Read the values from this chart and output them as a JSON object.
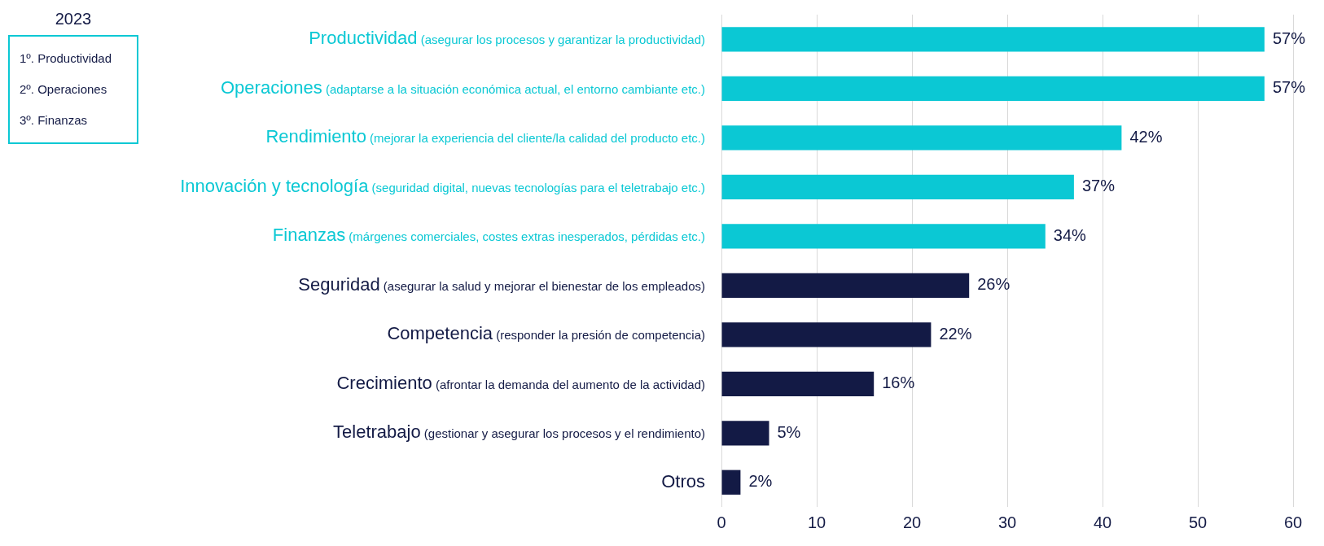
{
  "chart_data": {
    "type": "bar",
    "orientation": "horizontal",
    "categories": [
      "Productividad (asegurar los procesos y garantizar la productividad)",
      "Operaciones (adaptarse a la situación económica actual, el entorno cambiante etc.)",
      "Rendimiento (mejorar la experiencia del cliente/la calidad del producto etc.)",
      "Innovación y tecnología (seguridad digital, nuevas tecnologías para el teletrabajo etc.)",
      "Finanzas (márgenes comerciales, costes extras inesperados, pérdidas etc.)",
      "Seguridad (asegurar la salud y mejorar el bienestar de los empleados)",
      "Competencia (responder la presión de competencia)",
      "Crecimiento (afrontar la demanda del aumento de la actividad)",
      "Teletrabajo (gestionar y asegurar los procesos y el rendimiento)",
      "Otros"
    ],
    "values": [
      57,
      57,
      42,
      37,
      34,
      26,
      22,
      16,
      5,
      2
    ],
    "value_labels": [
      "57%",
      "57%",
      "42%",
      "37%",
      "34%",
      "26%",
      "22%",
      "16%",
      "5%",
      "2%"
    ],
    "colors": [
      "#0bc8d4",
      "#0bc8d4",
      "#0bc8d4",
      "#0bc8d4",
      "#0bc8d4",
      "#131a45",
      "#131a45",
      "#131a45",
      "#131a45",
      "#131a45"
    ],
    "xlim": [
      0,
      60
    ],
    "xticks": [
      0,
      10,
      20,
      30,
      40,
      50,
      60
    ],
    "grid": "x",
    "legend": false,
    "annotations": [
      "2023",
      "1º. Productividad",
      "2º. Operaciones",
      "3º. Finanzas"
    ]
  }
}
